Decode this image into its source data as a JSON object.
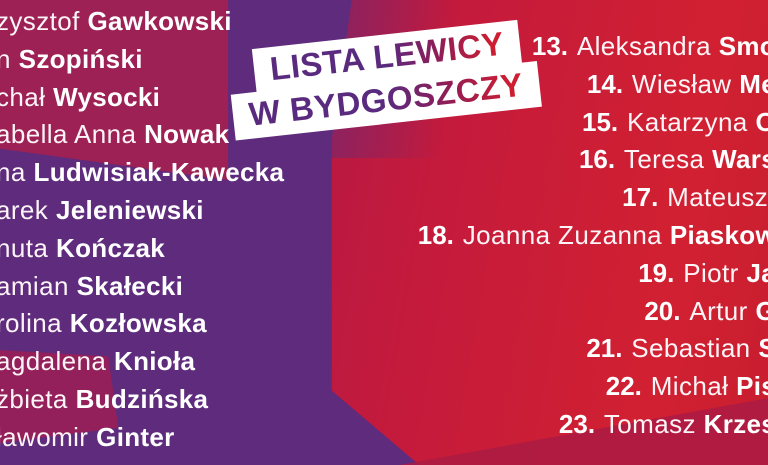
{
  "badge": {
    "line1": "LISTA LEWICY",
    "line2": "W BYDGOSZCZY"
  },
  "left_list": [
    {
      "first": "zysztof",
      "last": "Gawkowski"
    },
    {
      "first": "n",
      "last": "Szopiński"
    },
    {
      "first": "chał",
      "last": "Wysocki"
    },
    {
      "first": "abella Anna",
      "last": "Nowak"
    },
    {
      "first": "na",
      "last": "Ludwisiak-Kawecka"
    },
    {
      "first": "arek",
      "last": "Jeleniewski"
    },
    {
      "first": "nuta",
      "last": "Kończak"
    },
    {
      "first": "amian",
      "last": "Skałecki"
    },
    {
      "first": "rolina",
      "last": "Kozłowska"
    },
    {
      "first": "agdalena",
      "last": "Knioła"
    },
    {
      "first": "żbieta",
      "last": "Budzińska"
    },
    {
      "first": "ławomir",
      "last": "Ginter"
    }
  ],
  "right_list": [
    {
      "number": "13.",
      "first": "Aleksandra",
      "last": "Smo"
    },
    {
      "number": "14.",
      "first": "Wiesław",
      "last": "Me"
    },
    {
      "number": "15.",
      "first": "Katarzyna",
      "last": "O"
    },
    {
      "number": "16.",
      "first": "Teresa",
      "last": "Wars"
    },
    {
      "number": "17.",
      "first": "Mateusz",
      "last": ""
    },
    {
      "number": "18.",
      "first": "Joanna Zuzanna",
      "last": "Piaskow"
    },
    {
      "number": "19.",
      "first": "Piotr",
      "last": "Ja"
    },
    {
      "number": "20.",
      "first": "Artur",
      "last": "G"
    },
    {
      "number": "21.",
      "first": "Sebastian",
      "last": "S"
    },
    {
      "number": "22.",
      "first": "Michał",
      "last": "Pis"
    },
    {
      "number": "23.",
      "first": "Tomasz",
      "last": "Krzes"
    }
  ],
  "colors": {
    "purple": "#5e2b7d",
    "magenta_top": "#9d2154",
    "magenta_band": "#93205a",
    "red": "#d02131",
    "crimson": "#a81a4b",
    "dark_wedge": "#ab1b44",
    "white": "#ffffff",
    "badge_text_start": "#5a2a7f",
    "badge_text_end": "#cf1e31"
  }
}
